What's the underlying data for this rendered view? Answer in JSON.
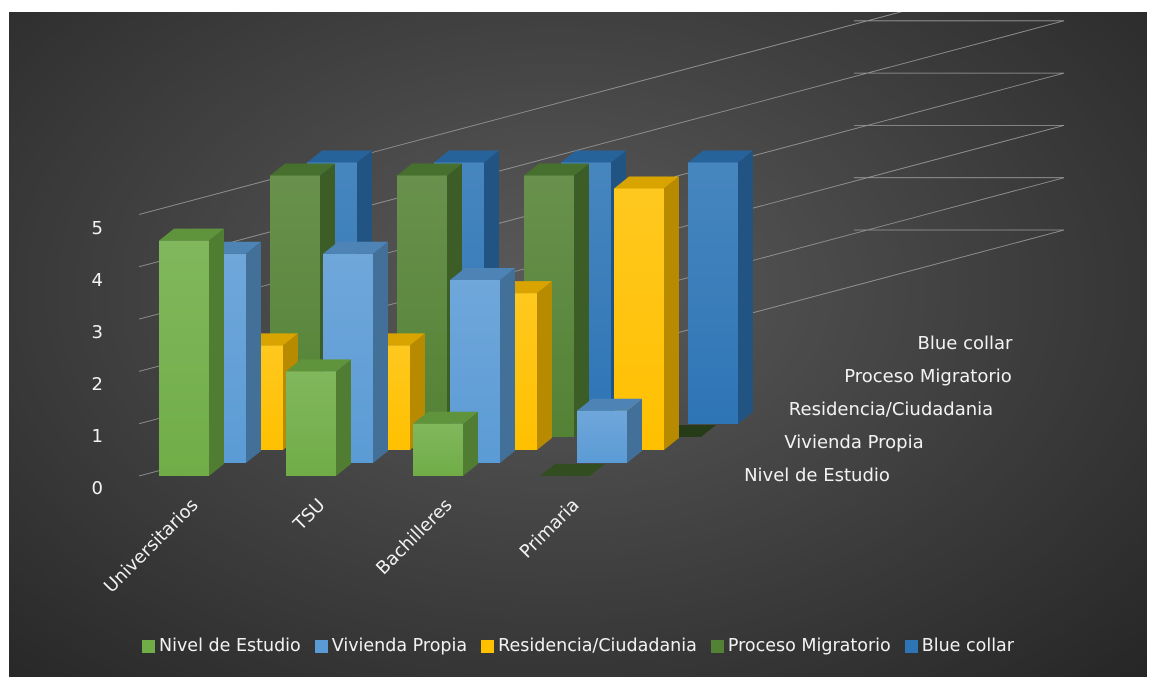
{
  "chart_data": {
    "type": "bar",
    "title": "",
    "xlabel": "",
    "ylabel": "",
    "ylim": [
      0,
      5
    ],
    "yticks": [
      "0",
      "1",
      "2",
      "3",
      "4",
      "5"
    ],
    "grid": true,
    "legend_position": "bottom",
    "categories": [
      "Universitarios",
      "TSU",
      "Bachilleres",
      "Primaria"
    ],
    "series": [
      {
        "name": "Nivel de Estudio",
        "color": "#70ad47",
        "values": [
          4.5,
          2.0,
          1.0,
          0
        ]
      },
      {
        "name": "Vivienda Propia",
        "color": "#5b9bd5",
        "values": [
          4.0,
          4.0,
          3.5,
          1.0
        ]
      },
      {
        "name": "Residencia/Ciudadania",
        "color": "#ffc000",
        "values": [
          2.0,
          2.0,
          3.0,
          5.0
        ]
      },
      {
        "name": "Proceso Migratorio",
        "color": "#548235",
        "values": [
          5.0,
          5.0,
          5.0,
          0
        ]
      },
      {
        "name": "Blue collar",
        "color": "#2e75b6",
        "values": [
          5.0,
          5.0,
          5.0,
          5.0
        ]
      }
    ]
  }
}
